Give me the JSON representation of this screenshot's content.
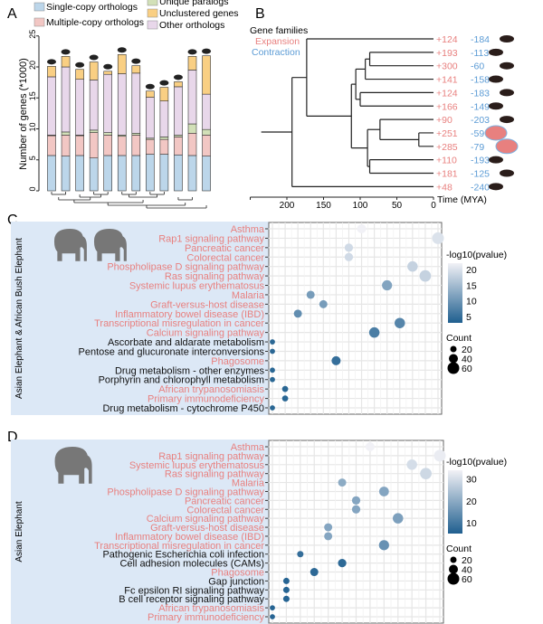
{
  "panels": {
    "a": "A",
    "b": "B",
    "c": "C",
    "d": "D"
  },
  "colors": {
    "single": "#bcd6ea",
    "multi": "#f2c7c4",
    "unique": "#d2e0b8",
    "unclustered": "#f9cf83",
    "other": "#e8d7ea",
    "expansion": "#e8807f",
    "contraction": "#5b9bd5",
    "highlight_bg": "#dce8f6",
    "dark": "#1f5f8f",
    "light": "#f1f1f6"
  },
  "chart_data": [
    {
      "type": "bar",
      "stacked": true,
      "panel": "A",
      "ylabel": "Number of genes (*1000)",
      "ylim": [
        0,
        25
      ],
      "yticks": [
        0,
        5,
        10,
        15,
        20,
        25
      ],
      "legend": [
        "Single-copy orthologs",
        "Multiple-copy orthologs",
        "Unique paralogs",
        "Unclustered genes",
        "Other orthologs"
      ],
      "category_icons": [
        "dog-icon",
        "cow-icon",
        "bat-icon",
        "rodent-icon",
        "human-icon",
        "asian-elephant-icon",
        "african-elephant-icon",
        "hyrax-icon",
        "manatee-icon",
        "tenrec-icon",
        "aardvark-icon",
        "armadillo-icon"
      ],
      "series": [
        {
          "name": "Single-copy orthologs",
          "values": [
            5.7,
            5.6,
            5.7,
            5.3,
            5.7,
            5.7,
            5.7,
            5.9,
            5.9,
            5.8,
            5.7,
            5.6
          ]
        },
        {
          "name": "Multiple-copy orthologs",
          "values": [
            3.2,
            3.4,
            3.2,
            4.1,
            3.3,
            3.1,
            3.3,
            2.4,
            2.4,
            2.9,
            3.6,
            3.4
          ]
        },
        {
          "name": "Unique paralogs",
          "values": [
            0.1,
            0.5,
            0.1,
            0.4,
            0.4,
            0.2,
            0.3,
            0.2,
            0.4,
            0.3,
            1.5,
            0.9
          ]
        },
        {
          "name": "Other orthologs",
          "values": [
            9.4,
            10.5,
            9.0,
            8.1,
            9.4,
            9.9,
            9.7,
            6.6,
            5.8,
            7.8,
            8.7,
            5.7
          ]
        },
        {
          "name": "Unclustered genes",
          "values": [
            1.7,
            1.7,
            1.6,
            2.9,
            0.5,
            3.1,
            1.2,
            1.0,
            2.2,
            0.8,
            2.2,
            6.2
          ]
        }
      ]
    },
    {
      "type": "tree",
      "panel": "B",
      "title": "Gene families",
      "legend": [
        "Expansion",
        "Contraction"
      ],
      "xlabel": "Time (MYA)",
      "xticks": [
        200,
        150,
        100,
        50,
        0
      ],
      "xlim": [
        250,
        0
      ],
      "leaves": [
        {
          "icon": "armadillo-icon",
          "expansion": "+124",
          "contraction": "-184"
        },
        {
          "icon": "dog-icon",
          "expansion": "+193",
          "contraction": "-113"
        },
        {
          "icon": "cow-icon",
          "expansion": "+300",
          "contraction": "-60"
        },
        {
          "icon": "bat-icon",
          "expansion": "+141",
          "contraction": "-158"
        },
        {
          "icon": "rodent-icon",
          "expansion": "+124",
          "contraction": "-183"
        },
        {
          "icon": "human-icon",
          "expansion": "+166",
          "contraction": "-149"
        },
        {
          "icon": "hyrax-icon",
          "expansion": "+90",
          "contraction": "-203"
        },
        {
          "icon": "asian-elephant-icon",
          "expansion": "+251",
          "contraction": "-59"
        },
        {
          "icon": "african-elephant-icon",
          "expansion": "+285",
          "contraction": "-79"
        },
        {
          "icon": "tenrec-icon",
          "expansion": "+110",
          "contraction": "-193"
        },
        {
          "icon": "aardvark-icon",
          "expansion": "+181",
          "contraction": "-125"
        },
        {
          "icon": "opossum-icon",
          "expansion": "+48",
          "contraction": "-240"
        }
      ],
      "root_age": 235,
      "tree": {
        "age": 193,
        "children": [
          {
            "age": 173,
            "children": [
              0,
              {
                "age": 112,
                "children": [
                  {
                    "age": 106,
                    "children": [
                      {
                        "age": 93,
                        "children": [
                          {
                            "age": 87,
                            "children": [
                              1,
                              2
                            ]
                          },
                          3
                        ]
                      },
                      {
                        "age": 100,
                        "children": [
                          4,
                          5
                        ]
                      }
                    ]
                  },
                  {
                    "age": 90,
                    "children": [
                      {
                        "age": 73,
                        "children": [
                          6,
                          {
                            "age": 20,
                            "children": [
                              7,
                              8
                            ]
                          }
                        ]
                      },
                      {
                        "age": 87,
                        "children": [
                          9,
                          10
                        ]
                      }
                    ]
                  }
                ]
              }
            ]
          },
          11
        ]
      }
    },
    {
      "type": "scatter",
      "panel": "C",
      "group_label": "Asian Elephant & African Bush Elephant",
      "color_title": "-log10(pvalue)",
      "color_ticks": [
        20,
        15,
        10,
        5
      ],
      "color_range": [
        3,
        22
      ],
      "size_title": "Count",
      "size_ticks": [
        20,
        40,
        60
      ],
      "rows": [
        {
          "label": "Asthma",
          "highlight": true,
          "x": 7,
          "pvalue": 22,
          "count": 40
        },
        {
          "label": "Rap1 signaling pathway",
          "highlight": true,
          "x": 13,
          "pvalue": 20,
          "count": 60
        },
        {
          "label": "Pancreatic cancer",
          "highlight": true,
          "x": 6,
          "pvalue": 19,
          "count": 35
        },
        {
          "label": "Colorectal cancer",
          "highlight": true,
          "x": 6,
          "pvalue": 19,
          "count": 35
        },
        {
          "label": "Phospholipase D signaling pathway",
          "highlight": true,
          "x": 11,
          "pvalue": 18,
          "count": 50
        },
        {
          "label": "Ras signaling pathway",
          "highlight": true,
          "x": 12,
          "pvalue": 18,
          "count": 58
        },
        {
          "label": "Systemic lupus erythematosus",
          "highlight": true,
          "x": 9,
          "pvalue": 12,
          "count": 48
        },
        {
          "label": "Malaria",
          "highlight": true,
          "x": 3,
          "pvalue": 11,
          "count": 33
        },
        {
          "label": "Graft-versus-host disease",
          "highlight": true,
          "x": 4,
          "pvalue": 11,
          "count": 33
        },
        {
          "label": "Inflammatory bowel disease (IBD)",
          "highlight": true,
          "x": 2,
          "pvalue": 9,
          "count": 33
        },
        {
          "label": "Transcriptional misregulation in cancer",
          "highlight": true,
          "x": 10,
          "pvalue": 8,
          "count": 50
        },
        {
          "label": "Calcium signaling pathway",
          "highlight": true,
          "x": 8,
          "pvalue": 7,
          "count": 50
        },
        {
          "label": "Ascorbate and aldarate metabolism",
          "highlight": false,
          "x": 0,
          "pvalue": 4,
          "count": 12
        },
        {
          "label": "Pentose and glucuronate interconversions",
          "highlight": false,
          "x": 0,
          "pvalue": 4,
          "count": 12
        },
        {
          "label": "Phagosome",
          "highlight": true,
          "x": 5,
          "pvalue": 5,
          "count": 40
        },
        {
          "label": "Drug metabolism - other enzymes",
          "highlight": false,
          "x": 0,
          "pvalue": 4,
          "count": 12
        },
        {
          "label": "Porphyrin and chlorophyll metabolism",
          "highlight": false,
          "x": 0,
          "pvalue": 4,
          "count": 12
        },
        {
          "label": "African trypanosomiasis",
          "highlight": true,
          "x": 1,
          "pvalue": 4,
          "count": 18
        },
        {
          "label": "Primary immunodeficiency",
          "highlight": true,
          "x": 1,
          "pvalue": 4,
          "count": 18
        },
        {
          "label": "Drug metabolism - cytochrome P450",
          "highlight": false,
          "x": 0,
          "pvalue": 4,
          "count": 12
        }
      ]
    },
    {
      "type": "scatter",
      "panel": "D",
      "group_label": "Asian Elephant",
      "color_title": "-log10(pvalue)",
      "color_ticks": [
        30,
        20,
        10
      ],
      "color_range": [
        5,
        34
      ],
      "size_title": "Count",
      "size_ticks": [
        20,
        40,
        60
      ],
      "rows": [
        {
          "label": "Asthma",
          "highlight": true,
          "x": 7,
          "pvalue": 34,
          "count": 40
        },
        {
          "label": "Rap1 signaling pathway",
          "highlight": true,
          "x": 12,
          "pvalue": 33,
          "count": 60
        },
        {
          "label": "Systemic lupus erythematosus",
          "highlight": true,
          "x": 10,
          "pvalue": 30,
          "count": 50
        },
        {
          "label": "Ras signaling pathway",
          "highlight": true,
          "x": 11,
          "pvalue": 29,
          "count": 58
        },
        {
          "label": "Malaria",
          "highlight": true,
          "x": 5,
          "pvalue": 20,
          "count": 33
        },
        {
          "label": "Phospholipase D signaling pathway",
          "highlight": true,
          "x": 8,
          "pvalue": 19,
          "count": 45
        },
        {
          "label": "Pancreatic cancer",
          "highlight": true,
          "x": 6,
          "pvalue": 19,
          "count": 35
        },
        {
          "label": "Colorectal cancer",
          "highlight": true,
          "x": 6,
          "pvalue": 19,
          "count": 35
        },
        {
          "label": "Calcium signaling pathway",
          "highlight": true,
          "x": 9,
          "pvalue": 18,
          "count": 50
        },
        {
          "label": "Graft-versus-host disease",
          "highlight": true,
          "x": 4,
          "pvalue": 19,
          "count": 33
        },
        {
          "label": "Inflammatory bowel disease (IBD)",
          "highlight": true,
          "x": 4,
          "pvalue": 19,
          "count": 33
        },
        {
          "label": "Transcriptional misregulation in cancer",
          "highlight": true,
          "x": 8,
          "pvalue": 15,
          "count": 48
        },
        {
          "label": "Pathogenic Escherichia coli infection",
          "highlight": false,
          "x": 2,
          "pvalue": 8,
          "count": 20
        },
        {
          "label": "Cell adhesion molecules (CAMs)",
          "highlight": false,
          "x": 5,
          "pvalue": 7,
          "count": 35
        },
        {
          "label": "Phagosome",
          "highlight": true,
          "x": 3,
          "pvalue": 7,
          "count": 33
        },
        {
          "label": "Gap junction",
          "highlight": false,
          "x": 1,
          "pvalue": 6,
          "count": 20
        },
        {
          "label": "Fc epsilon RI signaling pathway",
          "highlight": false,
          "x": 1,
          "pvalue": 6,
          "count": 20
        },
        {
          "label": "B cell receptor signaling pathway",
          "highlight": false,
          "x": 1,
          "pvalue": 6,
          "count": 20
        },
        {
          "label": "African trypanosomiasis",
          "highlight": true,
          "x": 0,
          "pvalue": 6,
          "count": 12
        },
        {
          "label": "Primary immunodeficiency",
          "highlight": true,
          "x": 0,
          "pvalue": 6,
          "count": 12
        }
      ]
    }
  ]
}
